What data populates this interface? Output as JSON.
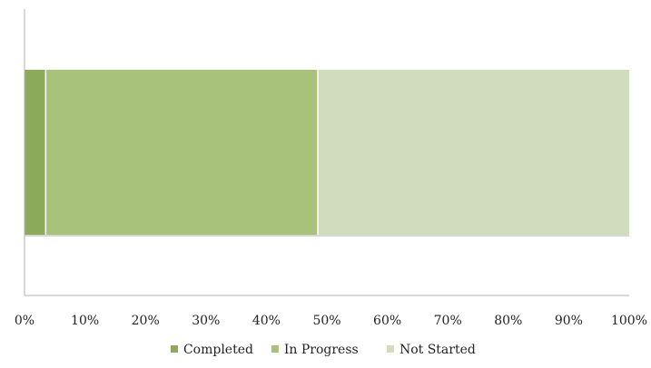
{
  "chart_data": {
    "type": "bar",
    "orientation": "horizontal",
    "stacked": true,
    "percent_stacked": true,
    "title": "",
    "xlabel": "",
    "ylabel": "",
    "xlim": [
      0,
      100
    ],
    "x_tick_labels": [
      "0%",
      "10%",
      "20%",
      "30%",
      "40%",
      "50%",
      "60%",
      "70%",
      "80%",
      "90%",
      "100%"
    ],
    "categories": [
      ""
    ],
    "series": [
      {
        "name": "Completed",
        "values": [
          3.5
        ],
        "color": "#8cab5a"
      },
      {
        "name": "In Progress",
        "values": [
          45
        ],
        "color": "#a8c279"
      },
      {
        "name": "Not Started",
        "values": [
          51.5
        ],
        "color": "#d1dcbc"
      }
    ],
    "grid": false,
    "legend": {
      "position": "bottom"
    }
  }
}
